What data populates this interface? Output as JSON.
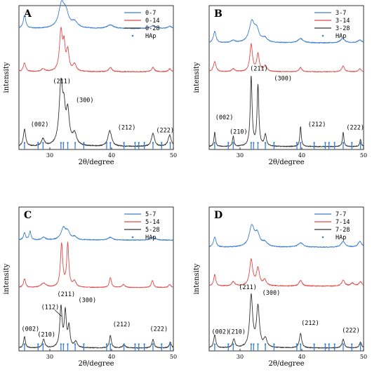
{
  "chart_data": [
    {
      "title": "A",
      "type": "line",
      "xlabel": "2θ/degree",
      "ylabel": "intensity",
      "xlim": [
        25,
        50
      ],
      "xticks": [
        30,
        40,
        50
      ],
      "ylim": [
        0,
        100
      ],
      "legend": "top-right",
      "series": [
        {
          "name": "0-7",
          "color": "#3b7fd1",
          "base": 84,
          "noise": 0.6,
          "peaks": [
            [
              25.9,
              9,
              0.25
            ],
            [
              31.9,
              16,
              0.55
            ],
            [
              32.6,
              9,
              0.5
            ],
            [
              34,
              4,
              0.6
            ],
            [
              39.8,
              2.5,
              0.6
            ],
            [
              46.7,
              2,
              0.5
            ],
            [
              49.4,
              1.5,
              0.4
            ]
          ]
        },
        {
          "name": "0-14",
          "color": "#e04b4b",
          "base": 54,
          "noise": 0.6,
          "peaks": [
            [
              25.9,
              6,
              0.25
            ],
            [
              28.9,
              2,
              0.3
            ],
            [
              31.8,
              28,
              0.28
            ],
            [
              32.3,
              16,
              0.2
            ],
            [
              32.9,
              14,
              0.25
            ],
            [
              34,
              5,
              0.3
            ],
            [
              39.8,
              3,
              0.3
            ],
            [
              46.7,
              3,
              0.25
            ],
            [
              49.4,
              2,
              0.25
            ]
          ]
        },
        {
          "name": "0-28",
          "color": "#333333",
          "base": 2,
          "noise": 0.7,
          "peaks": [
            [
              25.9,
              12,
              0.22
            ],
            [
              28.9,
              5,
              0.3
            ],
            [
              31.8,
              42,
              0.35
            ],
            [
              32.3,
              18,
              0.25
            ],
            [
              32.9,
              22,
              0.3
            ],
            [
              34,
              8,
              0.4
            ],
            [
              39.7,
              11,
              0.35
            ],
            [
              46.7,
              9,
              0.3
            ],
            [
              49.4,
              8,
              0.3
            ]
          ]
        }
      ],
      "markers": {
        "name": "HAp",
        "color": "#3b7fd1"
      },
      "annotations": [
        {
          "text": "(002)",
          "x": 26.9,
          "y": 16
        },
        {
          "text": "(211)",
          "x": 30.5,
          "y": 46
        },
        {
          "text": "(300)",
          "x": 34.2,
          "y": 33
        },
        {
          "text": "(212)",
          "x": 41,
          "y": 14
        },
        {
          "text": "(222)",
          "x": 47.2,
          "y": 12
        }
      ]
    },
    {
      "title": "B",
      "type": "line",
      "xlabel": "2θ/degree",
      "ylabel": "intensity",
      "xlim": [
        25,
        50
      ],
      "xticks": [
        30,
        40,
        50
      ],
      "ylim": [
        0,
        100
      ],
      "legend": "top-right",
      "series": [
        {
          "name": "3-7",
          "color": "#3b7fd1",
          "base": 74,
          "noise": 0.6,
          "peaks": [
            [
              25.9,
              8,
              0.25
            ],
            [
              28.9,
              1.5,
              0.4
            ],
            [
              31.9,
              14,
              0.5
            ],
            [
              32.7,
              8,
              0.45
            ],
            [
              34,
              3,
              0.5
            ],
            [
              39.8,
              3,
              0.5
            ],
            [
              46.6,
              3,
              0.45
            ],
            [
              49.4,
              2,
              0.4
            ]
          ]
        },
        {
          "name": "3-14",
          "color": "#e04b4b",
          "base": 54,
          "noise": 0.5,
          "peaks": [
            [
              25.9,
              7,
              0.25
            ],
            [
              28.9,
              2,
              0.3
            ],
            [
              31.8,
              19,
              0.25
            ],
            [
              32.9,
              12,
              0.25
            ],
            [
              34.1,
              4,
              0.3
            ],
            [
              39.8,
              3,
              0.25
            ],
            [
              46.7,
              4,
              0.25
            ],
            [
              49.4,
              2,
              0.25
            ]
          ]
        },
        {
          "name": "3-28",
          "color": "#333333",
          "base": 2,
          "noise": 0.6,
          "peaks": [
            [
              25.9,
              10,
              0.14
            ],
            [
              28.9,
              7,
              0.14
            ],
            [
              31.8,
              48,
              0.18
            ],
            [
              32.9,
              42,
              0.17
            ],
            [
              34.1,
              8,
              0.2
            ],
            [
              39.8,
              14,
              0.14
            ],
            [
              46.7,
              10,
              0.14
            ],
            [
              49.5,
              5,
              0.14
            ]
          ]
        }
      ],
      "markers": {
        "name": "HAp",
        "color": "#3b7fd1"
      },
      "annotations": [
        {
          "text": "(002)",
          "x": 26,
          "y": 21
        },
        {
          "text": "(210)",
          "x": 28.3,
          "y": 11
        },
        {
          "text": "(211)",
          "x": 31.6,
          "y": 55
        },
        {
          "text": "(300)",
          "x": 35.5,
          "y": 48
        },
        {
          "text": "(212)",
          "x": 41,
          "y": 16
        },
        {
          "text": "(222)",
          "x": 47.2,
          "y": 14
        }
      ]
    },
    {
      "title": "C",
      "type": "line",
      "xlabel": "2θ/degree",
      "ylabel": "intensity",
      "xlim": [
        25,
        50
      ],
      "xticks": [
        30,
        40,
        50
      ],
      "ylim": [
        0,
        100
      ],
      "legend": "top-right",
      "series": [
        {
          "name": "5-7",
          "color": "#3b7fd1",
          "base": 77,
          "noise": 0.6,
          "peaks": [
            [
              25.9,
              5,
              0.2
            ],
            [
              26.8,
              6,
              0.18
            ],
            [
              29,
              2,
              0.3
            ],
            [
              32.2,
              8,
              0.45
            ],
            [
              32.9,
              5,
              0.4
            ],
            [
              34,
              2,
              0.4
            ],
            [
              39.8,
              2,
              0.4
            ],
            [
              46.7,
              2,
              0.4
            ]
          ]
        },
        {
          "name": "5-14",
          "color": "#e04b4b",
          "base": 44,
          "noise": 0.5,
          "peaks": [
            [
              25.9,
              6,
              0.2
            ],
            [
              29,
              3,
              0.5
            ],
            [
              31.9,
              30,
              0.22
            ],
            [
              32.9,
              30,
              0.2
            ],
            [
              34,
              4,
              0.3
            ],
            [
              39.8,
              7,
              0.2
            ],
            [
              41.9,
              2,
              0.3
            ],
            [
              46.6,
              5,
              0.2
            ],
            [
              49.4,
              2,
              0.25
            ]
          ]
        },
        {
          "name": "5-28",
          "color": "#333333",
          "base": 2,
          "noise": 0.6,
          "peaks": [
            [
              25.9,
              8,
              0.17
            ],
            [
              29,
              6,
              0.22
            ],
            [
              31.8,
              28,
              0.22
            ],
            [
              32.5,
              24,
              0.2
            ],
            [
              33.1,
              14,
              0.2
            ],
            [
              34.2,
              4,
              0.3
            ],
            [
              39.8,
              9,
              0.18
            ],
            [
              42,
              2,
              0.3
            ],
            [
              46.7,
              6,
              0.2
            ],
            [
              49.5,
              4,
              0.2
            ]
          ]
        }
      ],
      "markers": {
        "name": "HAp",
        "color": "#3b7fd1"
      },
      "annotations": [
        {
          "text": "(002)",
          "x": 25.4,
          "y": 14
        },
        {
          "text": "(210)",
          "x": 28,
          "y": 10
        },
        {
          "text": "(112)",
          "x": 28.6,
          "y": 29
        },
        {
          "text": "(211)",
          "x": 31.2,
          "y": 38
        },
        {
          "text": "(300)",
          "x": 34.6,
          "y": 34
        },
        {
          "text": "(212)",
          "x": 40.2,
          "y": 17
        },
        {
          "text": "(222)",
          "x": 46.2,
          "y": 14
        }
      ]
    },
    {
      "title": "D",
      "type": "line",
      "xlabel": "2θ/degree",
      "ylabel": "intensity",
      "xlim": [
        25,
        50
      ],
      "xticks": [
        30,
        40,
        50
      ],
      "ylim": [
        0,
        100
      ],
      "legend": "top-right",
      "series": [
        {
          "name": "7-7",
          "color": "#3b7fd1",
          "base": 72,
          "noise": 0.6,
          "peaks": [
            [
              25.9,
              7,
              0.25
            ],
            [
              31.9,
              14,
              0.5
            ],
            [
              32.8,
              8,
              0.45
            ],
            [
              34,
              3,
              0.5
            ],
            [
              39.8,
              3,
              0.5
            ],
            [
              46.7,
              4,
              0.4
            ],
            [
              49.4,
              4,
              0.35
            ]
          ]
        },
        {
          "name": "7-14",
          "color": "#e04b4b",
          "base": 45,
          "noise": 0.6,
          "peaks": [
            [
              25.9,
              8,
              0.2
            ],
            [
              28.9,
              3,
              0.3
            ],
            [
              31.8,
              18,
              0.3
            ],
            [
              32.9,
              12,
              0.3
            ],
            [
              34,
              4,
              0.3
            ],
            [
              39.8,
              4,
              0.3
            ],
            [
              46.7,
              4,
              0.3
            ],
            [
              48.2,
              2,
              0.3
            ],
            [
              49.5,
              3,
              0.3
            ]
          ]
        },
        {
          "name": "7-28",
          "color": "#333333",
          "base": 2,
          "noise": 0.6,
          "peaks": [
            [
              25.9,
              9,
              0.2
            ],
            [
              29,
              6,
              0.22
            ],
            [
              31.8,
              36,
              0.28
            ],
            [
              32.9,
              28,
              0.28
            ],
            [
              34.1,
              6,
              0.3
            ],
            [
              39.8,
              10,
              0.22
            ],
            [
              46.7,
              6,
              0.22
            ],
            [
              49.5,
              4,
              0.22
            ]
          ]
        }
      ],
      "markers": {
        "name": "HAp",
        "color": "#3b7fd1"
      },
      "annotations": [
        {
          "text": "(002)",
          "x": 25.4,
          "y": 12
        },
        {
          "text": "(210)",
          "x": 28,
          "y": 12
        },
        {
          "text": "(211)",
          "x": 29.8,
          "y": 43
        },
        {
          "text": "(300)",
          "x": 33.6,
          "y": 39
        },
        {
          "text": "(212)",
          "x": 39.9,
          "y": 18
        },
        {
          "text": "(222)",
          "x": 46.5,
          "y": 13
        }
      ]
    }
  ],
  "hap_positions": [
    25.9,
    28.1,
    28.9,
    31.8,
    32.2,
    32.9,
    34.1,
    35.5,
    39.2,
    39.8,
    42,
    43.8,
    44.4,
    45.3,
    46.7,
    48.1,
    49.5
  ]
}
